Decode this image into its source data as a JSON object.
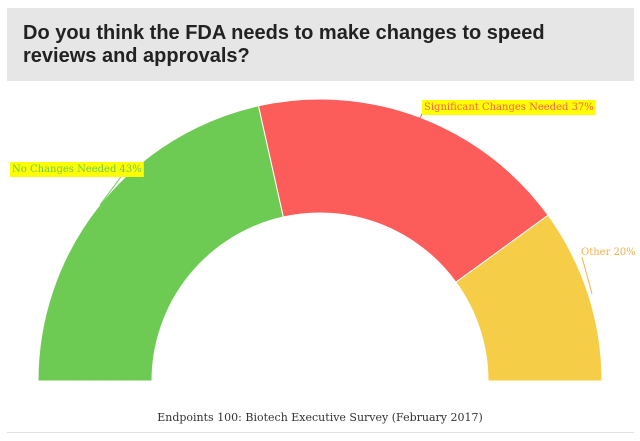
{
  "header": {
    "title": "Do you think the FDA needs to make changes to speed reviews and approvals?"
  },
  "chart_data": {
    "type": "pie",
    "subtype": "semi-donut",
    "categories": [
      "No Changes Needed",
      "Significant Changes Needed",
      "Other"
    ],
    "values": [
      43,
      37,
      20
    ],
    "labels": [
      "No Changes Needed 43%",
      "Significant Changes Needed 37%",
      "Other 20%"
    ],
    "colors": [
      "#6dcb53",
      "#fc5c5a",
      "#f5cd47"
    ],
    "label_colors": [
      "#6dcb53",
      "#fc5c5a",
      "#f2b14c"
    ],
    "label_highlight": [
      "#ffff00",
      "#ffff00",
      "none"
    ],
    "source": "Endpoints 100: Biotech Executive Survey (February 2017)"
  }
}
